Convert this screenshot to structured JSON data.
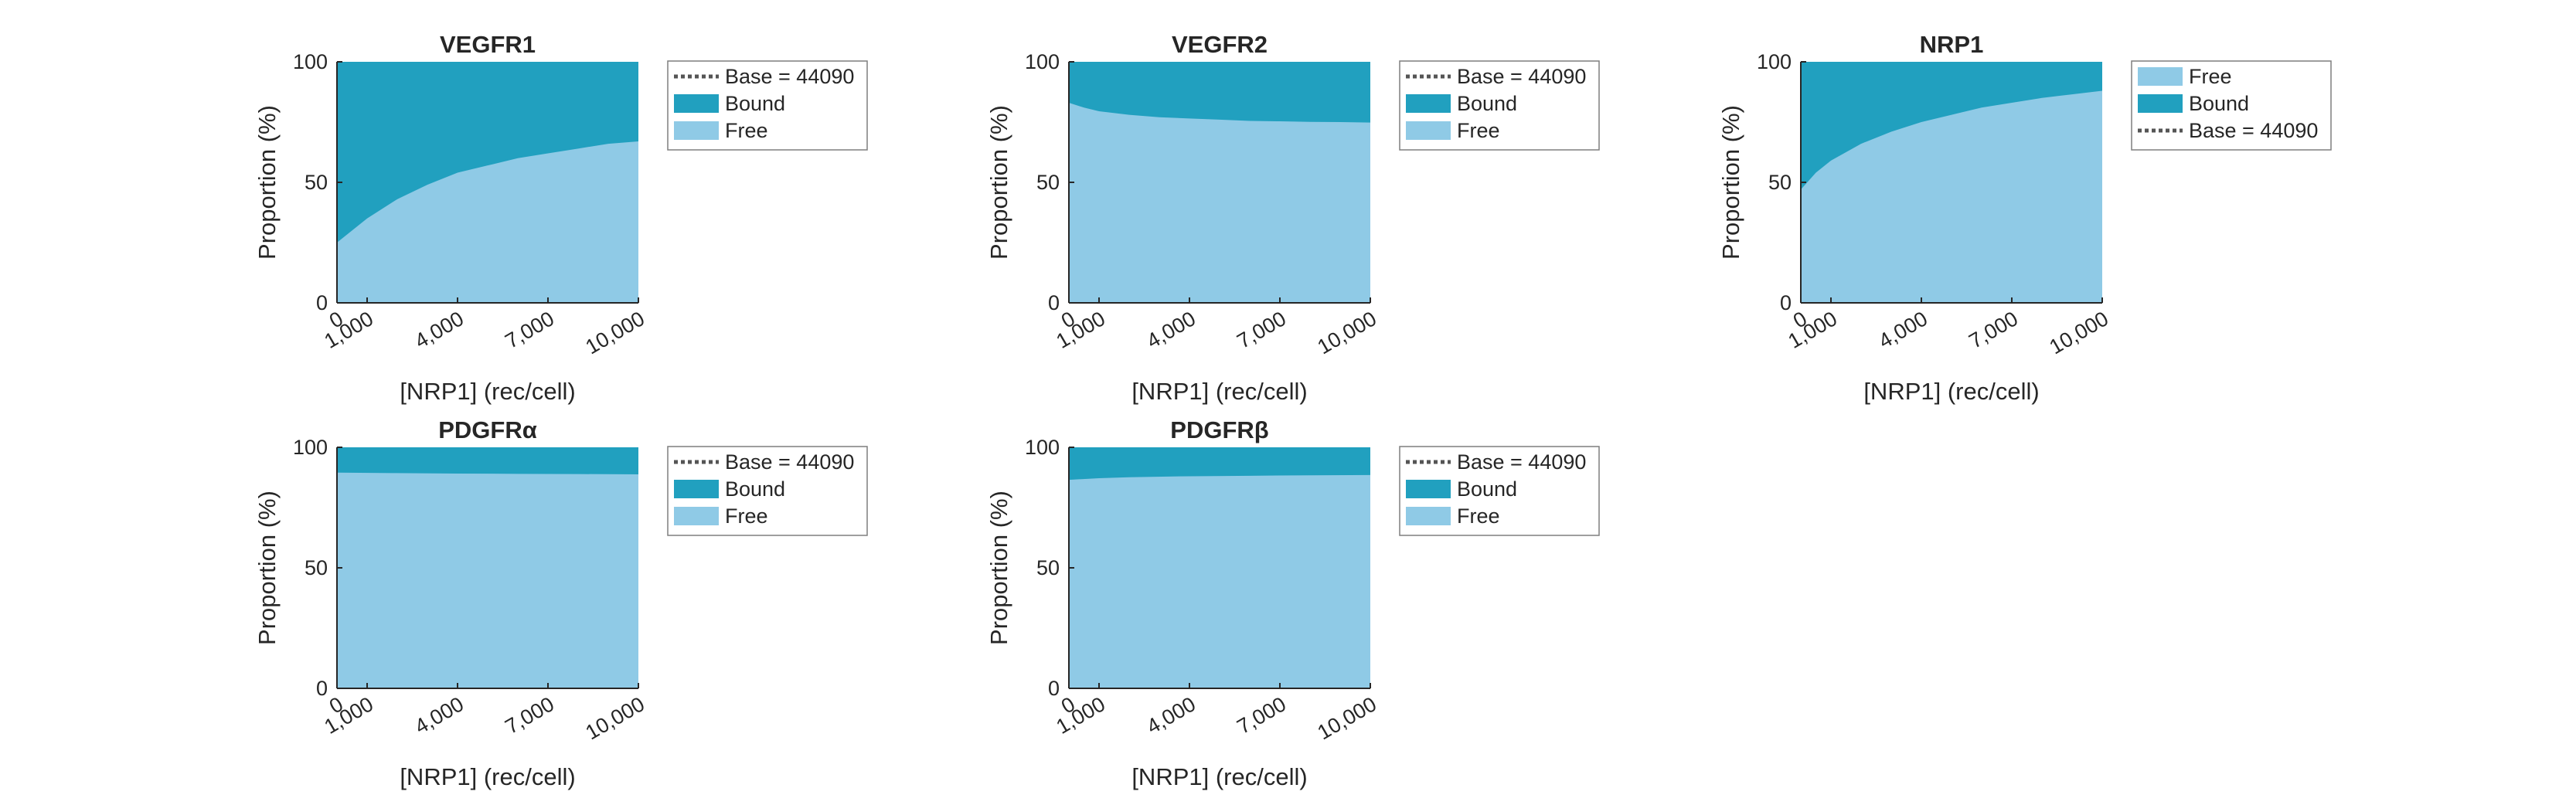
{
  "colors": {
    "bound": "#21a0bf",
    "free": "#8fcae6",
    "base_line": "#555555",
    "axis": "#262626"
  },
  "chart_data": [
    {
      "type": "area",
      "title": "VEGFR1",
      "xlabel": "[NRP1] (rec/cell)",
      "ylabel": "Proportion (%)",
      "xlim": [
        0,
        10000
      ],
      "ylim": [
        0,
        100
      ],
      "xticks": [
        0,
        1000,
        4000,
        7000,
        10000
      ],
      "xtick_labels": [
        "0",
        "1,000",
        "4,000",
        "7,000",
        "10,000"
      ],
      "yticks": [
        0,
        50,
        100
      ],
      "ytick_labels": [
        "0",
        "50",
        "100"
      ],
      "legend": [
        "Base = 44090",
        "Bound",
        "Free"
      ],
      "legend_position": "outside-right",
      "x": [
        0,
        500,
        1000,
        2000,
        3000,
        4000,
        5000,
        6000,
        7000,
        8000,
        9000,
        10000
      ],
      "free": [
        25,
        30,
        35,
        43,
        49,
        54,
        57,
        60,
        62,
        64,
        66,
        67
      ]
    },
    {
      "type": "area",
      "title": "VEGFR2",
      "xlabel": "[NRP1] (rec/cell)",
      "ylabel": "Proportion (%)",
      "xlim": [
        0,
        10000
      ],
      "ylim": [
        0,
        100
      ],
      "xticks": [
        0,
        1000,
        4000,
        7000,
        10000
      ],
      "xtick_labels": [
        "0",
        "1,000",
        "4,000",
        "7,000",
        "10,000"
      ],
      "yticks": [
        0,
        50,
        100
      ],
      "ytick_labels": [
        "0",
        "50",
        "100"
      ],
      "legend": [
        "Base = 44090",
        "Bound",
        "Free"
      ],
      "legend_position": "outside-right",
      "x": [
        0,
        500,
        1000,
        2000,
        3000,
        4000,
        5000,
        6000,
        7000,
        8000,
        9000,
        10000
      ],
      "free": [
        83,
        81,
        79.5,
        78,
        77,
        76.5,
        76,
        75.5,
        75.3,
        75.1,
        75,
        74.8
      ]
    },
    {
      "type": "area",
      "title": "NRP1",
      "xlabel": "[NRP1] (rec/cell)",
      "ylabel": "Proportion (%)",
      "xlim": [
        0,
        10000
      ],
      "ylim": [
        0,
        100
      ],
      "xticks": [
        0,
        1000,
        4000,
        7000,
        10000
      ],
      "xtick_labels": [
        "0",
        "1,000",
        "4,000",
        "7,000",
        "10,000"
      ],
      "yticks": [
        0,
        50,
        100
      ],
      "ytick_labels": [
        "0",
        "50",
        "100"
      ],
      "legend": [
        "Free",
        "Bound",
        "Base = 44090"
      ],
      "legend_position": "outside-right",
      "x": [
        0,
        500,
        1000,
        2000,
        3000,
        4000,
        5000,
        6000,
        7000,
        8000,
        9000,
        10000
      ],
      "free": [
        47,
        54,
        59,
        66,
        71,
        75,
        78,
        81,
        83,
        85,
        86.5,
        88
      ]
    },
    {
      "type": "area",
      "title": "PDGFRα",
      "xlabel": "[NRP1] (rec/cell)",
      "ylabel": "Proportion (%)",
      "xlim": [
        0,
        10000
      ],
      "ylim": [
        0,
        100
      ],
      "xticks": [
        0,
        1000,
        4000,
        7000,
        10000
      ],
      "xtick_labels": [
        "0",
        "1,000",
        "4,000",
        "7,000",
        "10,000"
      ],
      "yticks": [
        0,
        50,
        100
      ],
      "ytick_labels": [
        "0",
        "50",
        "100"
      ],
      "legend": [
        "Base = 44090",
        "Bound",
        "Free"
      ],
      "legend_position": "outside-right",
      "x": [
        0,
        2000,
        4000,
        6000,
        8000,
        10000
      ],
      "free": [
        89.5,
        89.3,
        89.1,
        89,
        88.9,
        88.8
      ]
    },
    {
      "type": "area",
      "title": "PDGFRβ",
      "xlabel": "[NRP1] (rec/cell)",
      "ylabel": "Proportion (%)",
      "xlim": [
        0,
        10000
      ],
      "ylim": [
        0,
        100
      ],
      "xticks": [
        0,
        1000,
        4000,
        7000,
        10000
      ],
      "xtick_labels": [
        "0",
        "1,000",
        "4,000",
        "7,000",
        "10,000"
      ],
      "yticks": [
        0,
        50,
        100
      ],
      "ytick_labels": [
        "0",
        "50",
        "100"
      ],
      "legend": [
        "Base = 44090",
        "Bound",
        "Free"
      ],
      "legend_position": "outside-right",
      "x": [
        0,
        1000,
        2000,
        4000,
        6000,
        8000,
        10000
      ],
      "free": [
        86.5,
        87.2,
        87.6,
        88,
        88.2,
        88.4,
        88.5
      ]
    }
  ]
}
